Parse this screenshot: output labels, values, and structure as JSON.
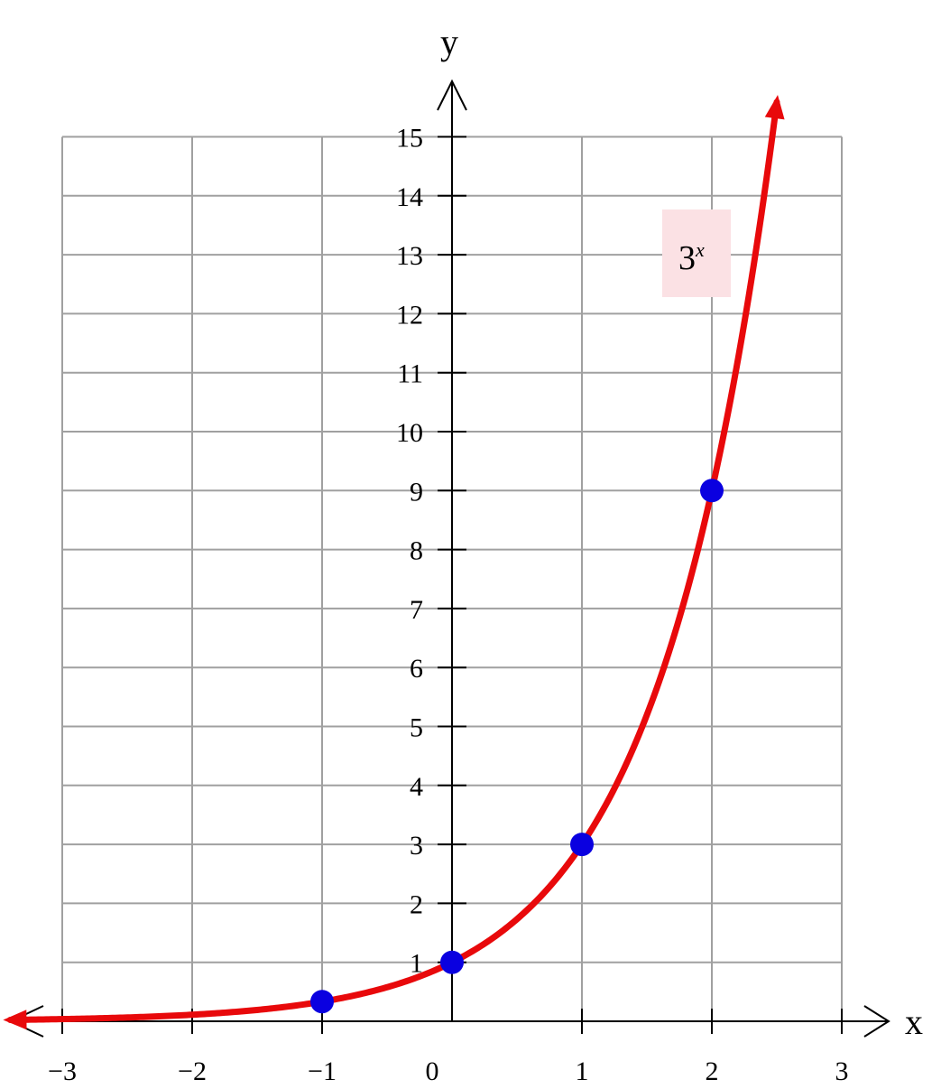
{
  "chart_data": {
    "type": "line",
    "title": "",
    "xlabel": "x",
    "ylabel": "y",
    "xlim": [
      -3,
      3
    ],
    "ylim": [
      0,
      15
    ],
    "x_ticks": [
      -3,
      -2,
      -1,
      0,
      1,
      2,
      3
    ],
    "x_tick_labels": [
      "−3",
      "−2",
      "−1",
      "0",
      "1",
      "2",
      "3"
    ],
    "y_ticks": [
      1,
      2,
      3,
      4,
      5,
      6,
      7,
      8,
      9,
      10,
      11,
      12,
      13,
      14,
      15
    ],
    "y_tick_labels": [
      "1",
      "2",
      "3",
      "4",
      "5",
      "6",
      "7",
      "8",
      "9",
      "10",
      "11",
      "12",
      "13",
      "14",
      "15"
    ],
    "grid": true,
    "series": [
      {
        "label_base": "3",
        "label_exponent": "x",
        "function": "3^x",
        "x_range": [
          -3.4,
          2.5
        ],
        "color": "#e8090b",
        "arrows_both_ends": true
      }
    ],
    "points": [
      {
        "x": -1,
        "y": 0.3333
      },
      {
        "x": 0,
        "y": 1
      },
      {
        "x": 1,
        "y": 3
      },
      {
        "x": 2,
        "y": 9
      }
    ],
    "point_color": "#0a00e0",
    "label_box_color": "#fbe1e4",
    "grid_color": "#a0a0a0"
  }
}
